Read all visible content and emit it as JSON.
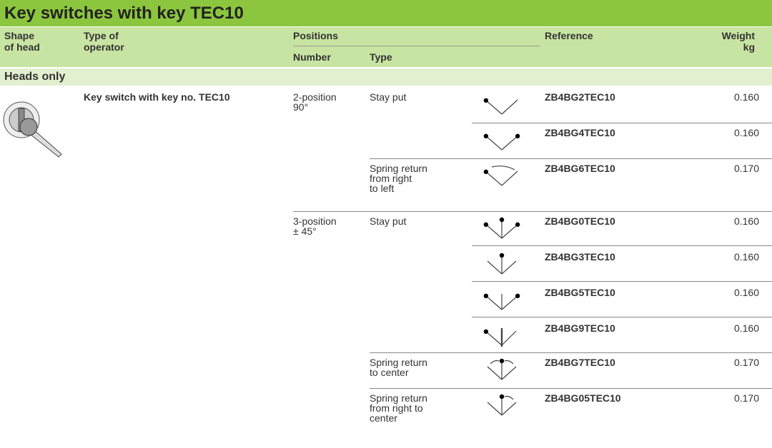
{
  "header": {
    "title": "Key switches with key TEC10"
  },
  "columns": {
    "shape": [
      "Shape",
      "of head"
    ],
    "operator": [
      "Type of",
      "operator"
    ],
    "positions": "Positions",
    "number": "Number",
    "type": "Type",
    "reference": "Reference",
    "weight": [
      "Weight",
      "kg"
    ]
  },
  "section": "Heads only",
  "product": "Key switch with key no. TEC10",
  "rows": [
    {
      "number": [
        "2-position",
        "90°"
      ],
      "type": [
        "Stay put"
      ],
      "reference": "ZB4BG2TEC10",
      "weight": "0.160"
    },
    {
      "reference": "ZB4BG4TEC10",
      "weight": "0.160"
    },
    {
      "type": [
        "Spring return",
        "from right",
        "to left"
      ],
      "reference": "ZB4BG6TEC10",
      "weight": "0.170"
    },
    {
      "number": [
        "3-position",
        "± 45°"
      ],
      "type": [
        "Stay put"
      ],
      "reference": "ZB4BG0TEC10",
      "weight": "0.160"
    },
    {
      "reference": "ZB4BG3TEC10",
      "weight": "0.160"
    },
    {
      "reference": "ZB4BG5TEC10",
      "weight": "0.160"
    },
    {
      "reference": "ZB4BG9TEC10",
      "weight": "0.160"
    },
    {
      "type": [
        "Spring return",
        "to center"
      ],
      "reference": "ZB4BG7TEC10",
      "weight": "0.170"
    },
    {
      "type": [
        "Spring return",
        "from right to",
        "center"
      ],
      "reference": "ZB4BG05TEC10",
      "weight": "0.170"
    }
  ]
}
